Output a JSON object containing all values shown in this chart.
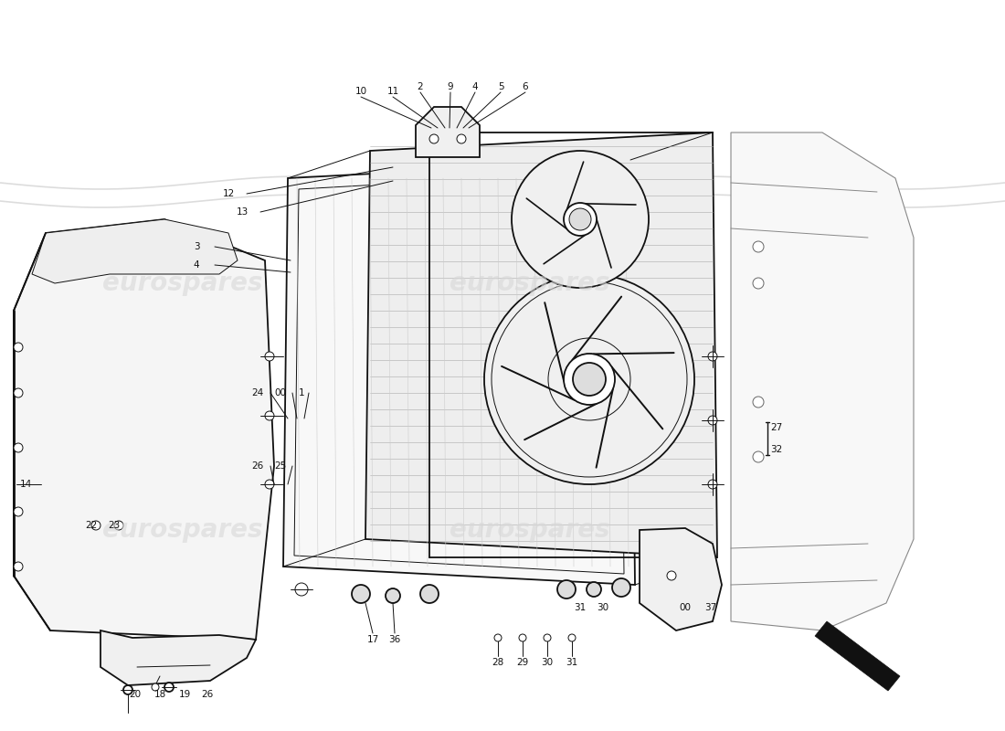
{
  "bg_color": "#ffffff",
  "line_color": "#111111",
  "watermark_color": "#d8d8d8",
  "watermark_text": "eurospares",
  "fig_w": 11.0,
  "fig_h": 8.0,
  "dpi": 100,
  "label_fontsize": 7.5,
  "watermark_fontsize": 20,
  "lw_main": 1.3,
  "lw_thin": 0.7,
  "lw_thick": 2.0
}
